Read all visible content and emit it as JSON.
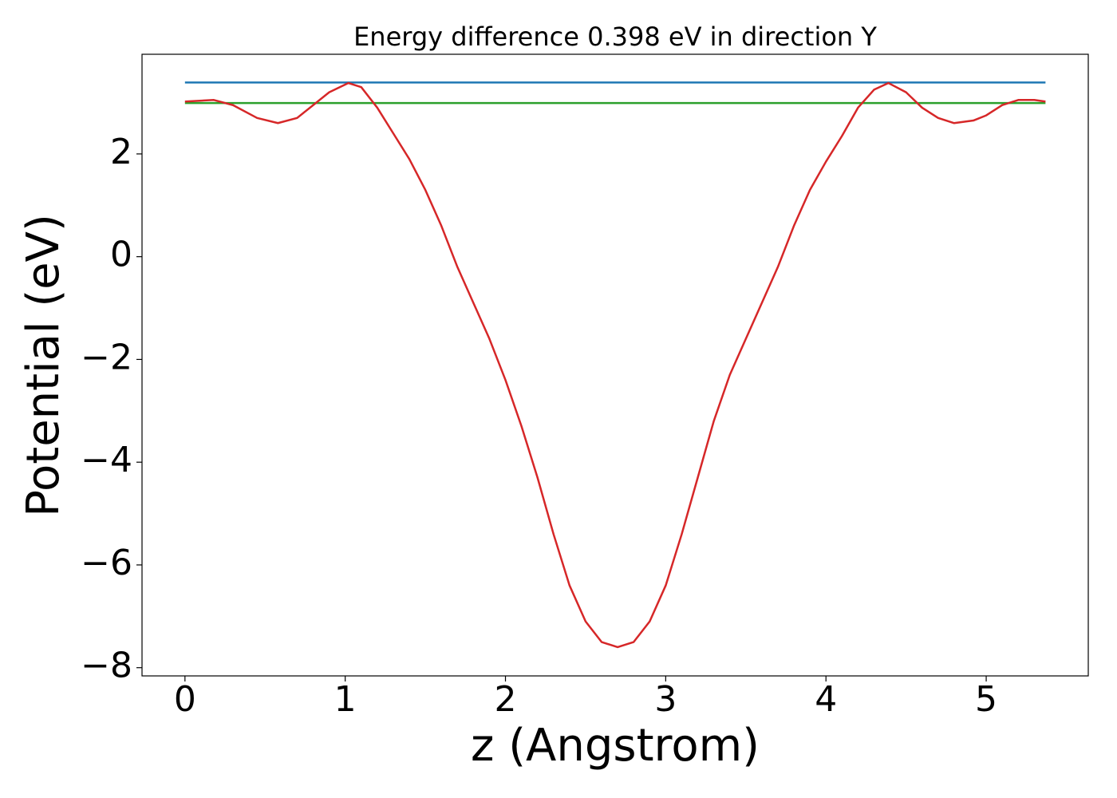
{
  "chart_data": {
    "type": "line",
    "title": "Energy difference 0.398 eV in direction Y",
    "x_label": "z (Angstrom)",
    "y_label": "Potential (eV)",
    "xlim": [
      -0.268,
      5.637
    ],
    "ylim": [
      -8.16,
      3.94
    ],
    "xticks": [
      0,
      1,
      2,
      3,
      4,
      5
    ],
    "yticks": [
      {
        "value": -8,
        "label": "−8"
      },
      {
        "value": -6,
        "label": "−6"
      },
      {
        "value": -4,
        "label": "−4"
      },
      {
        "value": -2,
        "label": "−2"
      },
      0,
      2
    ],
    "series": [
      {
        "color": "#1f77b4",
        "x": [
          0,
          5.37
        ],
        "values": [
          3.39,
          3.39
        ]
      },
      {
        "color": "#2ca02c",
        "x": [
          0,
          5.37
        ],
        "values": [
          2.99,
          2.99
        ]
      },
      {
        "color": "#d62728",
        "x": [
          0,
          0.18,
          0.3,
          0.45,
          0.58,
          0.7,
          0.8,
          0.9,
          1.02,
          1.1,
          1.2,
          1.3,
          1.4,
          1.5,
          1.6,
          1.7,
          1.8,
          1.9,
          2.0,
          2.1,
          2.2,
          2.3,
          2.4,
          2.5,
          2.6,
          2.7,
          2.8,
          2.9,
          3.0,
          3.1,
          3.2,
          3.3,
          3.4,
          3.5,
          3.6,
          3.7,
          3.8,
          3.9,
          4.0,
          4.1,
          4.2,
          4.3,
          4.39,
          4.5,
          4.6,
          4.7,
          4.8,
          4.92,
          5.0,
          5.1,
          5.2,
          5.3,
          5.37
        ],
        "values": [
          3.02,
          3.05,
          2.95,
          2.7,
          2.6,
          2.7,
          2.95,
          3.2,
          3.38,
          3.3,
          2.9,
          2.4,
          1.9,
          1.3,
          0.6,
          -0.2,
          -0.9,
          -1.6,
          -2.4,
          -3.3,
          -4.3,
          -5.4,
          -6.4,
          -7.1,
          -7.5,
          -7.6,
          -7.5,
          -7.1,
          -6.4,
          -5.4,
          -4.3,
          -3.2,
          -2.3,
          -1.6,
          -0.9,
          -0.2,
          0.6,
          1.3,
          1.85,
          2.35,
          2.9,
          3.25,
          3.38,
          3.2,
          2.9,
          2.7,
          2.6,
          2.65,
          2.75,
          2.95,
          3.05,
          3.05,
          3.02
        ]
      }
    ]
  }
}
